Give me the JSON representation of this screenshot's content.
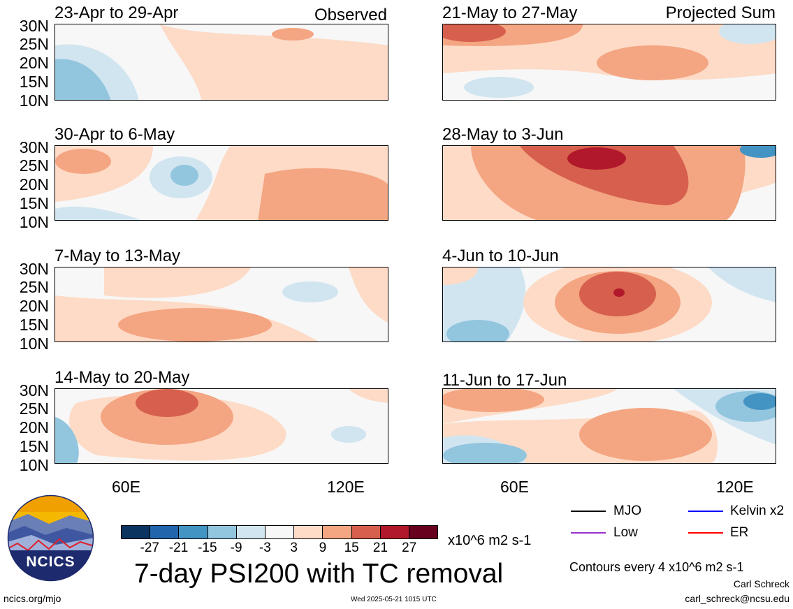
{
  "panels_left": [
    {
      "title": "23-Apr to 29-Apr",
      "corner": "Observed"
    },
    {
      "title": "30-Apr to 6-May",
      "corner": ""
    },
    {
      "title": "7-May to 13-May",
      "corner": ""
    },
    {
      "title": "14-May to 20-May",
      "corner": ""
    }
  ],
  "panels_right": [
    {
      "title": "21-May to 27-May",
      "corner": "Projected Sum"
    },
    {
      "title": "28-May to 3-Jun",
      "corner": ""
    },
    {
      "title": "4-Jun to 10-Jun",
      "corner": ""
    },
    {
      "title": "11-Jun to 17-Jun",
      "corner": ""
    }
  ],
  "lat_labels": [
    "30N",
    "25N",
    "20N",
    "15N",
    "10N"
  ],
  "lon_labels": [
    "60E",
    "120E"
  ],
  "colorbar": {
    "labels": [
      "-27",
      "-21",
      "-15",
      "-9",
      "-3",
      "3",
      "9",
      "15",
      "21",
      "27"
    ],
    "colors": [
      "#0b3460",
      "#2166ac",
      "#4393c3",
      "#92c5de",
      "#d1e5f0",
      "#f7f7f7",
      "#fddbc7",
      "#f4a582",
      "#d6604d",
      "#b2182b",
      "#67001f"
    ],
    "units": "x10^6 m2 s-1"
  },
  "legend": [
    {
      "label": "MJO",
      "color": "#000000"
    },
    {
      "label": "Kelvin x2",
      "color": "#0000ff"
    },
    {
      "label": "Low",
      "color": "#9932cc"
    },
    {
      "label": "ER",
      "color": "#ff0000"
    }
  ],
  "main_title": "7-day PSI200 with TC removal",
  "contour_note": "Contours every 4 x10^6 m2 s-1",
  "author": "Carl Schreck",
  "email": "carl_schreck@ncsu.edu",
  "site": "ncics.org/mjo",
  "timestamp": "Wed 2025-05-21 1015 UTC",
  "logo_text": "NCICS"
}
